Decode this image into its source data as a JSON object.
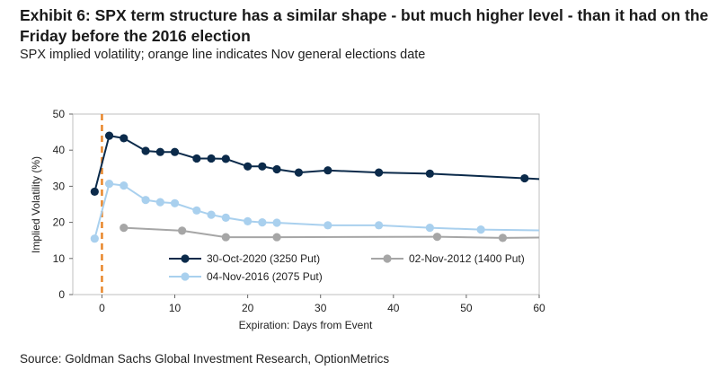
{
  "header": {
    "title": "Exhibit 6: SPX term structure has a similar shape - but much higher level - than it had on the Friday before the 2016 election",
    "subtitle": "SPX implied volatility; orange line indicates Nov general elections date"
  },
  "footer": {
    "source": "Source: Goldman Sachs Global Investment Research, OptionMetrics"
  },
  "chart_data": {
    "type": "line",
    "xlabel": "Expiration: Days from Event",
    "ylabel": "Implied Volatility (%)",
    "xlim": [
      -4,
      60
    ],
    "ylim": [
      0,
      50
    ],
    "x_ticks": [
      0,
      10,
      20,
      30,
      40,
      50,
      60
    ],
    "y_ticks": [
      0,
      10,
      20,
      30,
      40,
      50
    ],
    "grid": false,
    "vertical_marker": {
      "x": 0,
      "color": "#E8862A",
      "style": "dashed"
    },
    "legend_position": "bottom-center",
    "series": [
      {
        "name": "30-Oct-2020 (3250 Put)",
        "color": "#0B2A4A",
        "points": [
          [
            -1,
            28.5
          ],
          [
            1,
            44
          ],
          [
            3,
            43.3
          ],
          [
            6,
            39.8
          ],
          [
            8,
            39.5
          ],
          [
            10,
            39.5
          ],
          [
            13,
            37.7
          ],
          [
            15,
            37.7
          ],
          [
            17,
            37.6
          ],
          [
            20,
            35.5
          ],
          [
            22,
            35.5
          ],
          [
            24,
            34.7
          ],
          [
            27,
            33.8
          ],
          [
            31,
            34.4
          ],
          [
            38,
            33.8
          ],
          [
            45,
            33.5
          ],
          [
            58,
            32.2
          ],
          [
            60,
            32.0
          ]
        ]
      },
      {
        "name": "04-Nov-2016 (2075 Put)",
        "color": "#A9D0EE",
        "points": [
          [
            -1,
            15.5
          ],
          [
            1,
            30.7
          ],
          [
            3,
            30.2
          ],
          [
            6,
            26.2
          ],
          [
            8,
            25.6
          ],
          [
            10,
            25.3
          ],
          [
            13,
            23.3
          ],
          [
            15,
            22.1
          ],
          [
            17,
            21.3
          ],
          [
            20,
            20.3
          ],
          [
            22,
            20.0
          ],
          [
            24,
            19.9
          ],
          [
            31,
            19.2
          ],
          [
            38,
            19.2
          ],
          [
            45,
            18.5
          ],
          [
            52,
            18.0
          ],
          [
            60,
            17.8
          ]
        ]
      },
      {
        "name": "02-Nov-2012 (1400 Put)",
        "color": "#A6A6A6",
        "points": [
          [
            3,
            18.5
          ],
          [
            11,
            17.7
          ],
          [
            17,
            15.9
          ],
          [
            24,
            15.9
          ],
          [
            46,
            16.0
          ],
          [
            55,
            15.7
          ],
          [
            60,
            15.8
          ]
        ]
      }
    ]
  }
}
